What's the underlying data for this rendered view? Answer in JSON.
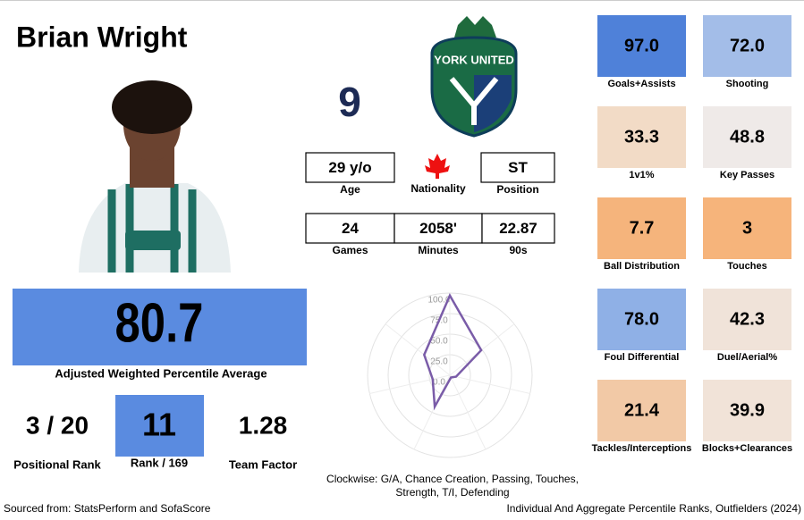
{
  "header": {
    "name": "Brian Wright",
    "number": "9",
    "club": "YORK UNITED"
  },
  "info": [
    {
      "value": "29 y/o",
      "label": "Age"
    },
    {
      "label": "Nationality"
    },
    {
      "value": "ST",
      "label": "Position"
    },
    {
      "value": "24",
      "label": "Games"
    },
    {
      "value": "2058'",
      "label": "Minutes"
    },
    {
      "value": "22.87",
      "label": "90s"
    }
  ],
  "summary": {
    "score": "80.7",
    "score_label": "Adjusted Weighted Percentile Average",
    "positional_rank": "3 / 20",
    "positional_rank_label": "Positional Rank",
    "rank": "11",
    "rank_label": "Rank / 169",
    "team_factor": "1.28",
    "team_factor_label": "Team Factor"
  },
  "tiles": [
    {
      "value": "97.0",
      "label": "Goals+Assists",
      "color": "#4f81d9"
    },
    {
      "value": "72.0",
      "label": "Shooting",
      "color": "#a3bde8"
    },
    {
      "value": "33.3",
      "label": "1v1%",
      "color": "#f2dbc6"
    },
    {
      "value": "48.8",
      "label": "Key Passes",
      "color": "#efeae8"
    },
    {
      "value": "7.7",
      "label": "Ball Distribution",
      "color": "#f5b47c"
    },
    {
      "value": "3",
      "label": "Touches",
      "color": "#f6b47b"
    },
    {
      "value": "78.0",
      "label": "Foul Differential",
      "color": "#8fb0e6"
    },
    {
      "value": "42.3",
      "label": "Duel/Aerial%",
      "color": "#f0e3d9"
    },
    {
      "value": "21.4",
      "label": "Tackles/Interceptions",
      "color": "#f2c9a6"
    },
    {
      "value": "39.9",
      "label": "Blocks+Clearances",
      "color": "#f1e3d8"
    }
  ],
  "chart_data": {
    "type": "radar",
    "values": [
      97,
      48.8,
      7.7,
      3,
      42.3,
      21.4,
      39.9
    ],
    "color": "#7a5ca8",
    "rlim": [
      0,
      100
    ],
    "rticks": [
      {
        "value": 0,
        "label": "0.0"
      },
      {
        "value": 25,
        "label": "25.0"
      },
      {
        "value": 50,
        "label": "50.0"
      },
      {
        "value": 75,
        "label": "75.0"
      },
      {
        "value": 100,
        "label": "100.0"
      }
    ],
    "caption": [
      "Clockwise: G/A, Chance Creation, Passing, Touches,",
      "Strength, T/I, Defending"
    ]
  },
  "footer": {
    "source": "Sourced from: StatsPerform and SofaScore",
    "title": "Individual And Aggregate Percentile Ranks, Outfielders (2024)"
  }
}
